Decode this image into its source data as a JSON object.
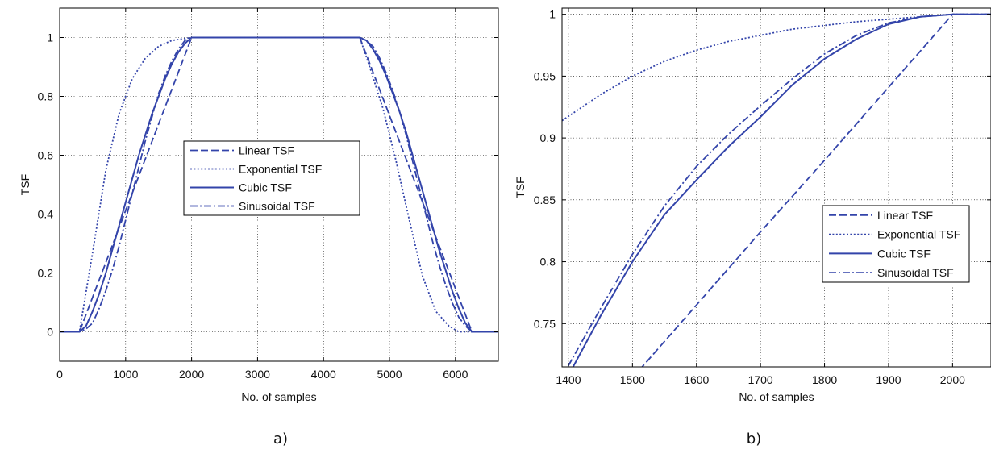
{
  "colors": {
    "series": "#3344aa",
    "grid": "#000000",
    "axis": "#000000"
  },
  "captions": [
    "a)",
    "b)"
  ],
  "chart_data": [
    {
      "type": "line",
      "caption": "a)",
      "xlabel": "No. of samples",
      "ylabel": "TSF",
      "xlim": [
        0,
        6650
      ],
      "ylim": [
        -0.1,
        1.1
      ],
      "xticks": [
        0,
        1000,
        2000,
        3000,
        4000,
        5000,
        6000
      ],
      "yticks": [
        0,
        0.2,
        0.4,
        0.6,
        0.8,
        1
      ],
      "ytick_labels": [
        "0",
        "0.2",
        "0.4",
        "0.6",
        "0.8",
        "1"
      ],
      "grid": true,
      "legend_placement": "center",
      "series": [
        {
          "name": "Linear TSF",
          "dash": "dashed",
          "x": [
            0,
            300,
            2000,
            4550,
            6250,
            6650
          ],
          "y": [
            0,
            0,
            1,
            1,
            0,
            0
          ]
        },
        {
          "name": "Exponential TSF",
          "dash": "dotted",
          "x": [
            0,
            300,
            500,
            700,
            900,
            1100,
            1300,
            1500,
            1700,
            2000,
            4550,
            4700,
            4900,
            5100,
            5300,
            5500,
            5700,
            5900,
            6050,
            6250,
            6650
          ],
          "y": [
            0,
            0,
            0.27,
            0.55,
            0.74,
            0.86,
            0.93,
            0.97,
            0.99,
            1,
            1,
            0.9,
            0.76,
            0.58,
            0.38,
            0.19,
            0.07,
            0.02,
            0.0,
            0,
            0
          ]
        },
        {
          "name": "Cubic TSF",
          "dash": "solid",
          "x": [
            0,
            300,
            400,
            500,
            600,
            700,
            800,
            900,
            1000,
            1100,
            1200,
            1300,
            1400,
            1500,
            1600,
            1700,
            1800,
            1900,
            2000,
            4550,
            4650,
            4750,
            4850,
            4950,
            5050,
            5150,
            5250,
            5350,
            5450,
            5550,
            5650,
            5750,
            5850,
            5950,
            6050,
            6150,
            6250,
            6650
          ],
          "y": [
            0,
            0,
            0.02,
            0.07,
            0.13,
            0.2,
            0.28,
            0.36,
            0.44,
            0.52,
            0.6,
            0.67,
            0.74,
            0.8,
            0.86,
            0.91,
            0.95,
            0.98,
            1,
            1,
            0.99,
            0.96,
            0.92,
            0.87,
            0.81,
            0.75,
            0.68,
            0.6,
            0.52,
            0.44,
            0.36,
            0.28,
            0.21,
            0.14,
            0.08,
            0.03,
            0,
            0
          ]
        },
        {
          "name": "Sinusoidal TSF",
          "dash": "dashdot",
          "x": [
            0,
            300,
            400,
            500,
            600,
            700,
            800,
            900,
            1000,
            1100,
            1200,
            1300,
            1400,
            1500,
            1600,
            1700,
            1800,
            1900,
            2000,
            4550,
            4650,
            4750,
            4850,
            4950,
            5050,
            5150,
            5250,
            5350,
            5450,
            5550,
            5650,
            5750,
            5850,
            5950,
            6050,
            6150,
            6250,
            6650
          ],
          "y": [
            0,
            0,
            0.01,
            0.03,
            0.08,
            0.14,
            0.21,
            0.29,
            0.38,
            0.47,
            0.56,
            0.65,
            0.73,
            0.81,
            0.87,
            0.92,
            0.96,
            0.99,
            1,
            1,
            0.99,
            0.97,
            0.93,
            0.88,
            0.82,
            0.75,
            0.67,
            0.58,
            0.49,
            0.4,
            0.31,
            0.23,
            0.16,
            0.1,
            0.05,
            0.02,
            0,
            0
          ]
        }
      ]
    },
    {
      "type": "line",
      "caption": "b)",
      "xlabel": "No. of samples",
      "ylabel": "TSF",
      "xlim": [
        1390,
        2060
      ],
      "ylim": [
        0.715,
        1.005
      ],
      "xticks": [
        1400,
        1500,
        1600,
        1700,
        1800,
        1900,
        2000
      ],
      "yticks": [
        0.75,
        0.8,
        0.85,
        0.9,
        0.95,
        1
      ],
      "ytick_labels": [
        "0.75",
        "0.8",
        "0.85",
        "0.9",
        "0.95",
        "1"
      ],
      "grid": true,
      "legend_placement": "lower right",
      "series": [
        {
          "name": "Linear TSF",
          "dash": "dashed",
          "x": [
            1500,
            1600,
            1700,
            1800,
            1900,
            2000,
            2060
          ],
          "y": [
            0.706,
            0.765,
            0.824,
            0.882,
            0.941,
            1.0,
            1.0
          ]
        },
        {
          "name": "Exponential TSF",
          "dash": "dotted",
          "x": [
            1390,
            1450,
            1500,
            1550,
            1600,
            1650,
            1700,
            1750,
            1800,
            1850,
            1900,
            1950,
            2000,
            2060
          ],
          "y": [
            0.914,
            0.935,
            0.95,
            0.962,
            0.971,
            0.978,
            0.983,
            0.988,
            0.991,
            0.994,
            0.996,
            0.998,
            1.0,
            1.0
          ]
        },
        {
          "name": "Cubic TSF",
          "dash": "solid",
          "x": [
            1400,
            1450,
            1500,
            1550,
            1600,
            1650,
            1700,
            1750,
            1800,
            1850,
            1900,
            1950,
            2000,
            2060
          ],
          "y": [
            0.708,
            0.756,
            0.8,
            0.838,
            0.866,
            0.893,
            0.917,
            0.943,
            0.964,
            0.98,
            0.992,
            0.998,
            1.0,
            1.0
          ]
        },
        {
          "name": "Sinusoidal TSF",
          "dash": "dashdot",
          "x": [
            1400,
            1450,
            1500,
            1550,
            1600,
            1650,
            1700,
            1750,
            1800,
            1850,
            1900,
            1950,
            2000,
            2060
          ],
          "y": [
            0.716,
            0.762,
            0.806,
            0.845,
            0.877,
            0.903,
            0.926,
            0.948,
            0.968,
            0.983,
            0.993,
            0.998,
            1.0,
            1.0
          ]
        }
      ]
    }
  ]
}
